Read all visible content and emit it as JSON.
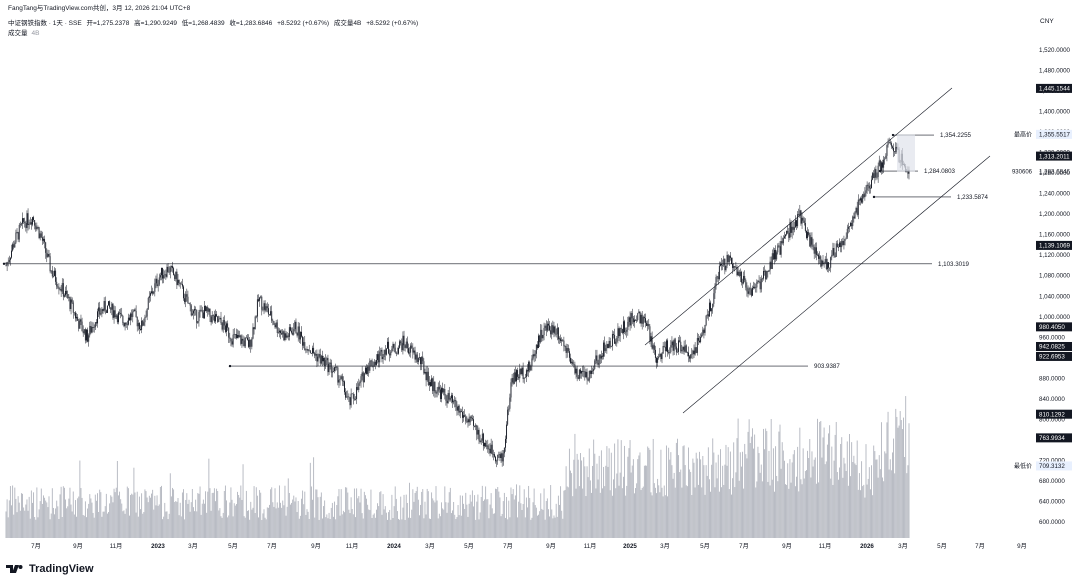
{
  "header": {
    "author_line": "FangTang与TradingView.com共创，3月 12, 2026 21:04 UTC+8",
    "symbol": "中证钢铁指数 · 1天 · SSE",
    "open": "开=1,275.2378",
    "high": "高=1,290.9249",
    "low": "低=1,268.4839",
    "close": "收=1,283.6846",
    "change": "+8.5292 (+0.67%)",
    "vol_label_inline": "成交量4B",
    "vol_change": "+8.5292 (+0.67%)",
    "volume_legend": "成交量",
    "volume_legend_value": "4B",
    "currency": "CNY"
  },
  "footer": {
    "brand": "TradingView"
  },
  "chart_data": {
    "type": "candlestick",
    "title": "中证钢铁指数 · 1天 · SSE",
    "x_ticks": [
      "7月",
      "9月",
      "11月",
      "2023",
      "3月",
      "5月",
      "7月",
      "9月",
      "11月",
      "2024",
      "3月",
      "5月",
      "7月",
      "9月",
      "11月",
      "2025",
      "3月",
      "5月",
      "7月",
      "9月",
      "11月",
      "2026",
      "3月",
      "5月",
      "7月",
      "9月"
    ],
    "y_ticks": [
      "1,520.0000",
      "1,480.0000",
      "1,440.0000",
      "1,400.0000",
      "1,360.0000",
      "1,320.0000",
      "1,280.0000",
      "1,240.0000",
      "1,200.0000",
      "1,160.0000",
      "1,120.0000",
      "1,080.0000",
      "1,040.0000",
      "1,000.0000",
      "960.0000",
      "920.0000",
      "880.0000",
      "840.0000",
      "800.0000",
      "760.0000",
      "720.0000",
      "680.0000",
      "640.0000",
      "600.0000"
    ],
    "ylim": [
      580,
      1560
    ],
    "price_path": [
      [
        0,
        1100
      ],
      [
        1,
        1150
      ],
      [
        2,
        1185
      ],
      [
        3,
        1195
      ],
      [
        4,
        1150
      ],
      [
        5,
        1090
      ],
      [
        6,
        1060
      ],
      [
        7,
        1030
      ],
      [
        8,
        990
      ],
      [
        9,
        960
      ],
      [
        10,
        1000
      ],
      [
        11,
        1020
      ],
      [
        12,
        1010
      ],
      [
        13,
        990
      ],
      [
        14,
        1005
      ],
      [
        15,
        980
      ],
      [
        16,
        1040
      ],
      [
        17,
        1080
      ],
      [
        18,
        1095
      ],
      [
        19,
        1070
      ],
      [
        20,
        1030
      ],
      [
        21,
        1000
      ],
      [
        22,
        1010
      ],
      [
        23,
        995
      ],
      [
        24,
        985
      ],
      [
        25,
        960
      ],
      [
        26,
        955
      ],
      [
        27,
        945
      ],
      [
        28,
        1035
      ],
      [
        29,
        1010
      ],
      [
        30,
        980
      ],
      [
        31,
        960
      ],
      [
        32,
        980
      ],
      [
        33,
        950
      ],
      [
        34,
        930
      ],
      [
        35,
        915
      ],
      [
        36,
        900
      ],
      [
        37,
        880
      ],
      [
        38,
        830
      ],
      [
        39,
        860
      ],
      [
        40,
        905
      ],
      [
        41,
        915
      ],
      [
        42,
        940
      ],
      [
        43,
        935
      ],
      [
        44,
        950
      ],
      [
        45,
        930
      ],
      [
        46,
        910
      ],
      [
        47,
        870
      ],
      [
        48,
        855
      ],
      [
        49,
        840
      ],
      [
        50,
        820
      ],
      [
        51,
        800
      ],
      [
        52,
        780
      ],
      [
        53,
        755
      ],
      [
        54,
        735
      ],
      [
        55,
        720
      ],
      [
        56,
        880
      ],
      [
        57,
        890
      ],
      [
        58,
        900
      ],
      [
        59,
        960
      ],
      [
        60,
        980
      ],
      [
        61,
        975
      ],
      [
        62,
        940
      ],
      [
        63,
        890
      ],
      [
        64,
        880
      ],
      [
        65,
        900
      ],
      [
        66,
        935
      ],
      [
        67,
        950
      ],
      [
        68,
        975
      ],
      [
        69,
        990
      ],
      [
        70,
        1005
      ],
      [
        71,
        980
      ],
      [
        72,
        920
      ],
      [
        73,
        940
      ],
      [
        74,
        945
      ],
      [
        75,
        935
      ],
      [
        76,
        930
      ],
      [
        77,
        960
      ],
      [
        78,
        1020
      ],
      [
        79,
        1090
      ],
      [
        80,
        1110
      ],
      [
        81,
        1080
      ],
      [
        82,
        1060
      ],
      [
        83,
        1050
      ],
      [
        84,
        1080
      ],
      [
        85,
        1115
      ],
      [
        86,
        1140
      ],
      [
        87,
        1180
      ],
      [
        88,
        1195
      ],
      [
        89,
        1150
      ],
      [
        90,
        1110
      ],
      [
        91,
        1100
      ],
      [
        92,
        1135
      ],
      [
        93,
        1160
      ],
      [
        94,
        1200
      ],
      [
        95,
        1240
      ],
      [
        96,
        1270
      ],
      [
        97,
        1300
      ],
      [
        98,
        1340
      ],
      [
        99,
        1310
      ],
      [
        100,
        1283
      ]
    ],
    "horizontal_lines": [
      {
        "label": "1,103.3019",
        "value": 1103.3019
      },
      {
        "label": "903.9387",
        "value": 903.9387
      },
      {
        "label": "1,354.2255",
        "value": 1354.2255
      },
      {
        "label": "1,284.0803",
        "value": 1284.0803
      },
      {
        "label": "1,233.5874",
        "value": 1233.5874
      }
    ],
    "axis_badges": [
      {
        "label": "1,445.1544",
        "value": 1445.1544,
        "style": "dark"
      },
      {
        "label": "1,355.5517",
        "value": 1355.5517,
        "style": "light",
        "tag": "最高价"
      },
      {
        "label": "1,313.2011",
        "value": 1313.2011,
        "style": "dark"
      },
      {
        "label": "1,283.6846",
        "value": 1283.6846,
        "style": "plain",
        "tag": "930606"
      },
      {
        "label": "1,139.1069",
        "value": 1139.1069,
        "style": "dark"
      },
      {
        "label": "980.4050",
        "value": 980.405,
        "style": "dark"
      },
      {
        "label": "942.0825",
        "value": 942.0825,
        "style": "dark"
      },
      {
        "label": "922.6953",
        "value": 922.6953,
        "style": "dark"
      },
      {
        "label": "810.1292",
        "value": 810.1292,
        "style": "dark"
      },
      {
        "label": "763.9934",
        "value": 763.9934,
        "style": "dark"
      },
      {
        "label": "709.3132",
        "value": 709.3132,
        "style": "light",
        "tag": "最低价"
      }
    ],
    "colors": {
      "candle": "#131722",
      "volume": "#b2b5be",
      "grid": "#f0f3fa",
      "badge_dark": "#131722",
      "badge_light": "#e8f0fe"
    }
  }
}
